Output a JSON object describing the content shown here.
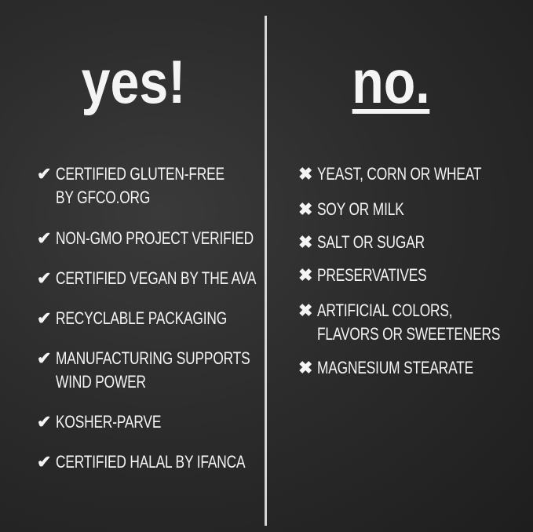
{
  "yes": {
    "heading": "yes!",
    "icon": "check-icon",
    "items": [
      "CERTIFIED GLUTEN-FREE\nBY GFCO.ORG",
      "NON-GMO PROJECT VERIFIED",
      "CERTIFIED VEGAN BY THE AVA",
      "RECYCLABLE PACKAGING",
      "MANUFACTURING SUPPORTS\nWIND POWER",
      "KOSHER-PARVE",
      "CERTIFIED HALAL BY IFANCA"
    ]
  },
  "no": {
    "heading": "no.",
    "icon": "x-icon",
    "items": [
      "YEAST, CORN OR WHEAT",
      "SOY OR MILK",
      "SALT OR SUGAR",
      "PRESERVATIVES",
      "ARTIFICIAL COLORS,\nFLAVORS OR SWEETENERS",
      "MAGNESIUM STEARATE"
    ]
  },
  "colors": {
    "background": "#2a2a2a",
    "chalk": "#f4f4f4"
  }
}
